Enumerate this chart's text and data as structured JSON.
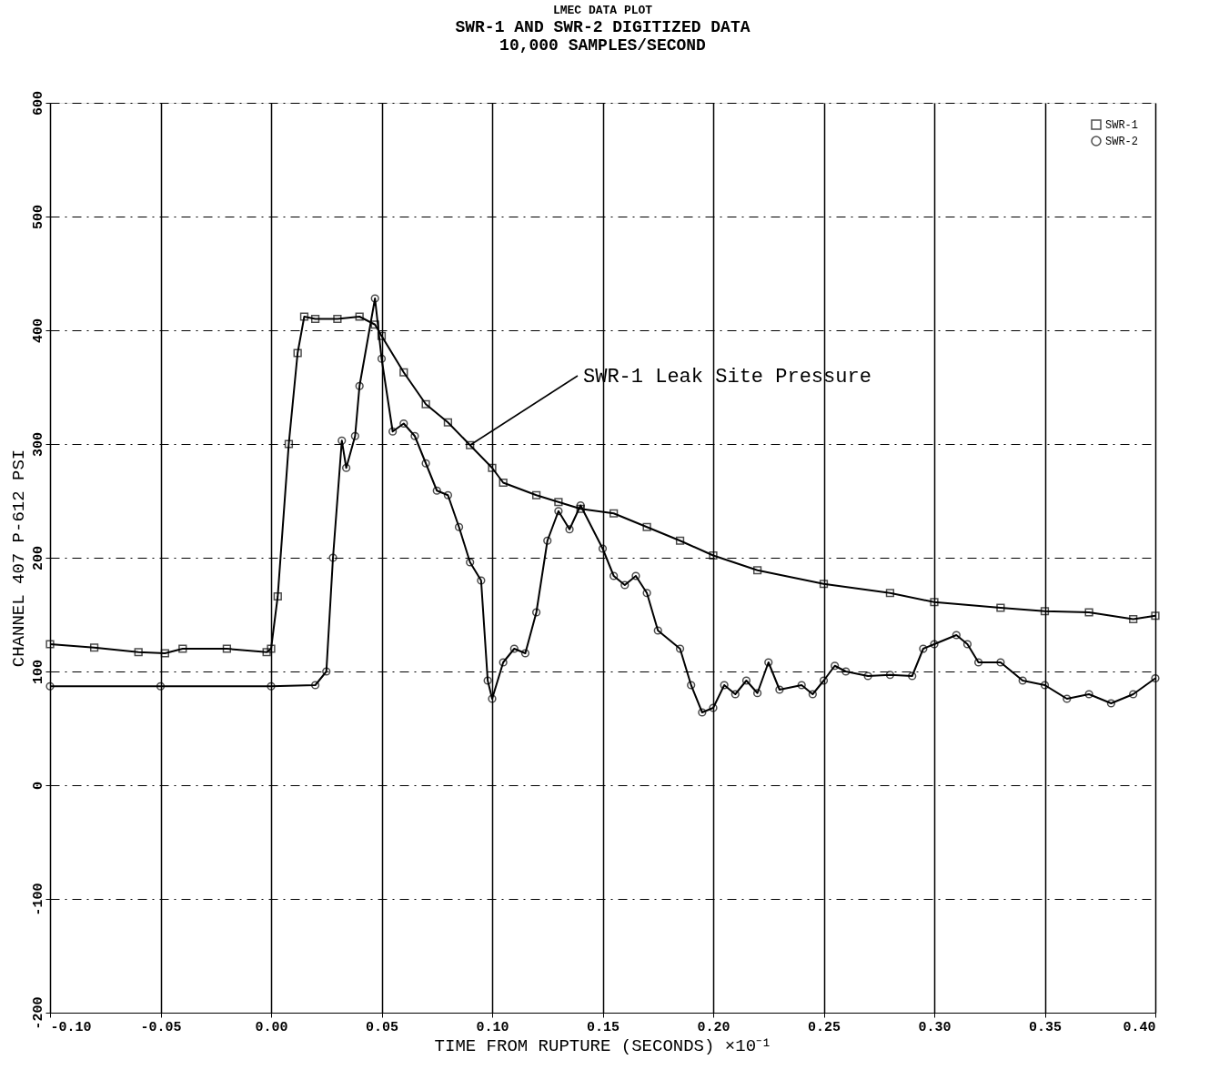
{
  "chart_data": {
    "type": "line",
    "title": "LMEC DATA PLOT",
    "subtitle": "SWR-1 AND SWR-2 DIGITIZED DATA\n10,000 SAMPLES/SECOND",
    "xlabel": "TIME FROM RUPTURE (SECONDS)   ×10⁻¹",
    "ylabel": "CHANNEL 407  P-612  PSI",
    "xlim": [
      -0.1,
      0.4
    ],
    "xticks": [
      {
        "value": -0.1,
        "label": "-0.10"
      },
      {
        "value": -0.05,
        "label": "-0.05"
      },
      {
        "value": 0.0,
        "label": "0.00"
      },
      {
        "value": 0.05,
        "label": "0.05"
      },
      {
        "value": 0.1,
        "label": "0.10"
      },
      {
        "value": 0.15,
        "label": "0.15"
      },
      {
        "value": 0.2,
        "label": "0.20"
      },
      {
        "value": 0.25,
        "label": "0.25"
      },
      {
        "value": 0.3,
        "label": "0.30"
      },
      {
        "value": 0.35,
        "label": "0.35"
      },
      {
        "value": 0.4,
        "label": "0.40"
      }
    ],
    "ylim": [
      -200,
      600
    ],
    "yticks": [
      -200,
      -100,
      0,
      100,
      200,
      300,
      400,
      500,
      600
    ],
    "grid": true,
    "legend": "top right",
    "line_style": "solid",
    "series": [
      {
        "name": "SWR-1",
        "color": "#000000",
        "marker": "square",
        "x": [
          -0.1,
          -0.08,
          -0.06,
          -0.048,
          -0.04,
          -0.02,
          -0.002,
          0.0,
          0.003,
          0.008,
          0.012,
          0.015,
          0.02,
          0.03,
          0.04,
          0.047,
          0.05,
          0.06,
          0.07,
          0.08,
          0.09,
          0.1,
          0.105,
          0.12,
          0.13,
          0.14,
          0.155,
          0.17,
          0.185,
          0.2,
          0.22,
          0.25,
          0.28,
          0.3,
          0.33,
          0.35,
          0.37,
          0.39,
          0.4
        ],
        "values": [
          124,
          121,
          117,
          116,
          120,
          120,
          117,
          120,
          166,
          300,
          380,
          412,
          410,
          410,
          412,
          405,
          395,
          363,
          335,
          319,
          299,
          279,
          266,
          255,
          249,
          243,
          239,
          227,
          215,
          202,
          189,
          177,
          169,
          161,
          156,
          153,
          152,
          146,
          149
        ]
      },
      {
        "name": "SWR-2",
        "color": "#000000",
        "marker": "circle",
        "x": [
          -0.1,
          -0.05,
          0.0,
          0.02,
          0.025,
          0.028,
          0.032,
          0.034,
          0.038,
          0.04,
          0.047,
          0.05,
          0.055,
          0.06,
          0.065,
          0.07,
          0.075,
          0.08,
          0.085,
          0.09,
          0.095,
          0.098,
          0.1,
          0.105,
          0.11,
          0.115,
          0.12,
          0.125,
          0.13,
          0.135,
          0.14,
          0.15,
          0.155,
          0.16,
          0.165,
          0.17,
          0.175,
          0.185,
          0.19,
          0.195,
          0.2,
          0.205,
          0.21,
          0.215,
          0.22,
          0.225,
          0.23,
          0.24,
          0.245,
          0.25,
          0.255,
          0.26,
          0.27,
          0.28,
          0.29,
          0.295,
          0.3,
          0.31,
          0.315,
          0.32,
          0.33,
          0.34,
          0.35,
          0.36,
          0.37,
          0.38,
          0.39,
          0.4
        ],
        "values": [
          87,
          87,
          87,
          88,
          100,
          200,
          303,
          279,
          307,
          351,
          428,
          375,
          311,
          318,
          307,
          283,
          259,
          255,
          227,
          196,
          180,
          92,
          76,
          108,
          120,
          116,
          152,
          215,
          241,
          225,
          246,
          208,
          184,
          176,
          184,
          169,
          136,
          120,
          88,
          64,
          68,
          88,
          80,
          92,
          81,
          108,
          84,
          88,
          80,
          92,
          105,
          100,
          96,
          97,
          96,
          120,
          124,
          132,
          124,
          108,
          108,
          92,
          88,
          76,
          80,
          72,
          80,
          94
        ]
      }
    ],
    "annotations": [
      {
        "text": "SWR-1 Leak Site Pressure",
        "x": 0.09,
        "y": 299
      }
    ]
  }
}
